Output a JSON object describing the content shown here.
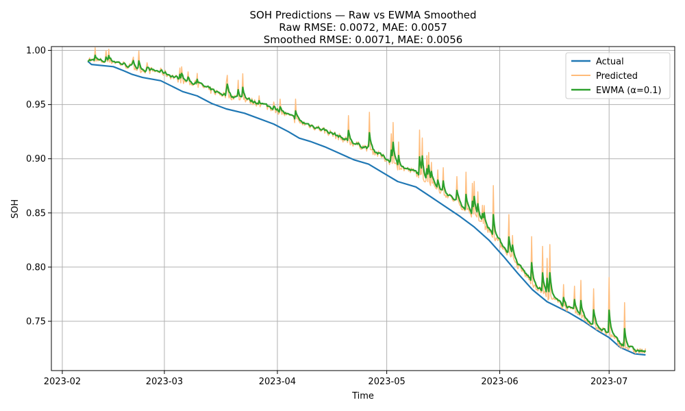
{
  "chart_data": {
    "type": "line",
    "title": "SOH Predictions — Raw vs EWMA Smoothed",
    "subtitle_lines": [
      "Raw RMSE: 0.0072, MAE: 0.0057",
      "Smoothed RMSE: 0.0071, MAE: 0.0056"
    ],
    "xlabel": "Time",
    "ylabel": "SOH",
    "xlim": [
      "2023-01-29",
      "2023-07-19"
    ],
    "ylim": [
      0.7045,
      1.0035
    ],
    "x_ticks": [
      "2023-02",
      "2023-03",
      "2023-04",
      "2023-05",
      "2023-06",
      "2023-07"
    ],
    "y_ticks": [
      "0.75",
      "0.80",
      "0.85",
      "0.90",
      "0.95",
      "1.00"
    ],
    "grid": true,
    "legend_position": "top-right",
    "legend": [
      "Actual",
      "Predicted",
      "EWMA (α=0.1)"
    ],
    "colors": {
      "actual": "#1f77b4",
      "predicted": "#ffbb78",
      "ewma": "#2ca02c"
    },
    "series": [
      {
        "name": "Actual",
        "x": [
          "2023-02-08",
          "2023-02-09",
          "2023-02-15",
          "2023-02-18",
          "2023-02-20",
          "2023-02-23",
          "2023-02-28",
          "2023-03-03",
          "2023-03-06",
          "2023-03-10",
          "2023-03-14",
          "2023-03-18",
          "2023-03-23",
          "2023-03-27",
          "2023-03-31",
          "2023-04-04",
          "2023-04-07",
          "2023-04-10",
          "2023-04-14",
          "2023-04-18",
          "2023-04-22",
          "2023-04-26",
          "2023-04-30",
          "2023-05-04",
          "2023-05-09",
          "2023-05-13",
          "2023-05-17",
          "2023-05-21",
          "2023-05-25",
          "2023-05-29",
          "2023-06-02",
          "2023-06-06",
          "2023-06-10",
          "2023-06-14",
          "2023-06-20",
          "2023-06-24",
          "2023-06-28",
          "2023-07-01",
          "2023-07-04",
          "2023-07-08",
          "2023-07-11"
        ],
        "values": [
          0.99,
          0.987,
          0.985,
          0.981,
          0.978,
          0.975,
          0.972,
          0.967,
          0.962,
          0.958,
          0.951,
          0.946,
          0.942,
          0.937,
          0.932,
          0.925,
          0.919,
          0.916,
          0.911,
          0.905,
          0.899,
          0.895,
          0.887,
          0.879,
          0.874,
          0.865,
          0.856,
          0.847,
          0.837,
          0.825,
          0.81,
          0.794,
          0.779,
          0.768,
          0.758,
          0.75,
          0.741,
          0.735,
          0.726,
          0.72,
          0.719
        ]
      },
      {
        "name": "Predicted",
        "generator": {
          "start": "2023-02-08",
          "end": "2023-07-11",
          "seed": 7,
          "noise": 0.0032,
          "spike_prob": 0.07,
          "spike_max": 0.045
        }
      },
      {
        "name": "EWMA (α=0.1)",
        "derived_from": "Predicted",
        "alpha": 0.1
      }
    ]
  }
}
